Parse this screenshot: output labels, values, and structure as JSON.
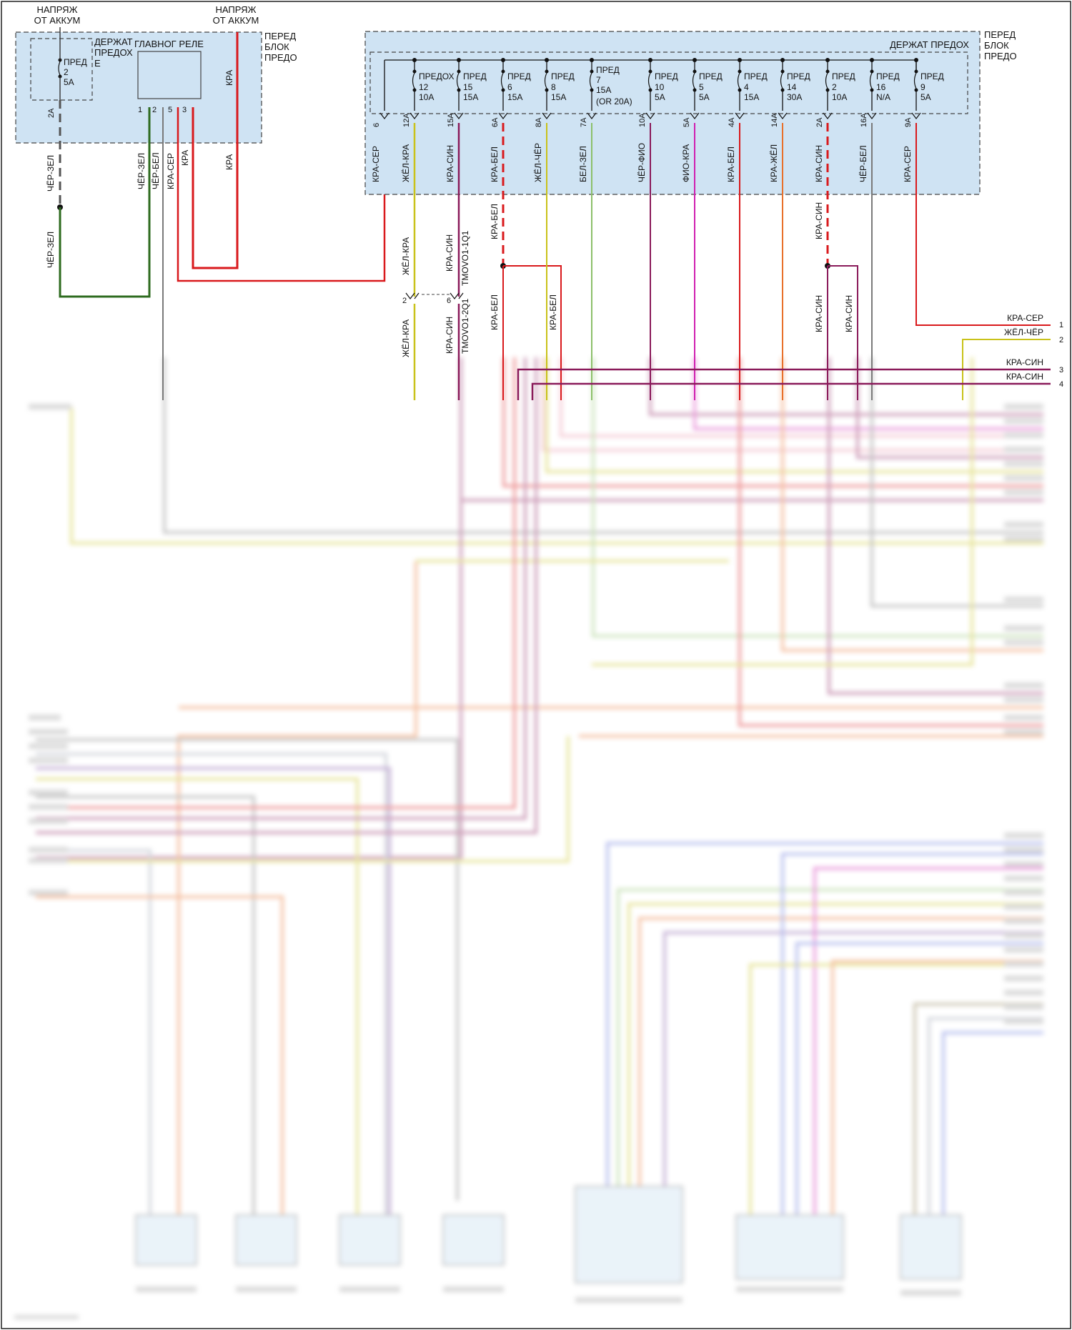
{
  "top_left": {
    "supply_left": [
      "НАПРЯЖ",
      "ОТ АККУМ"
    ],
    "supply_right": [
      "НАПРЯЖ",
      "ОТ АККУМ"
    ],
    "holder_label": [
      "ДЕРЖАТ",
      "ПРЕДОХ",
      "Е"
    ],
    "fuse": [
      "ПРЕД",
      "2",
      "5A"
    ],
    "relay_label": "ГЛАВНОГ РЕЛЕ",
    "relay_pins": [
      "1",
      "2",
      "5",
      "3"
    ],
    "block_label": [
      "ПЕРЕД",
      "БЛОК",
      "ПРЕДО"
    ],
    "pin_2a": "2A",
    "wires": {
      "relay_in": "КРА",
      "chr_zel_1": "ЧЁР-ЗЕЛ",
      "chr_zel_2": "ЧЁР-ЗЕЛ",
      "p1": "ЧЁР-ЗЕЛ",
      "p2": "ЧЁР-БЕЛ",
      "p5": "КРА-СЕР",
      "p3": "КРА",
      "kra": "КРА"
    }
  },
  "top_right": {
    "block_label": [
      "ПЕРЕД",
      "БЛОК",
      "ПРЕДО"
    ],
    "holder_label": "ДЕРЖАТ ПРЕДОХ",
    "fuses": [
      {
        "name": "ПРЕДОХ",
        "num": "12",
        "rating": "10A"
      },
      {
        "name": "ПРЕД",
        "num": "15",
        "rating": "15A"
      },
      {
        "name": "ПРЕД",
        "num": "6",
        "rating": "15A"
      },
      {
        "name": "ПРЕД",
        "num": "8",
        "rating": "15A"
      },
      {
        "name": "ПРЕД",
        "num": "7",
        "rating": "15A",
        "extra": "(OR 20A)"
      },
      {
        "name": "ПРЕД",
        "num": "10",
        "rating": "5A"
      },
      {
        "name": "ПРЕД",
        "num": "5",
        "rating": "5A"
      },
      {
        "name": "ПРЕД",
        "num": "4",
        "rating": "15A"
      },
      {
        "name": "ПРЕД",
        "num": "14",
        "rating": "30A"
      },
      {
        "name": "ПРЕД",
        "num": "2",
        "rating": "10A"
      },
      {
        "name": "ПРЕД",
        "num": "16",
        "rating": "N/A"
      },
      {
        "name": "ПРЕД",
        "num": "9",
        "rating": "5A"
      }
    ],
    "pins": [
      "6",
      "12A",
      "15A",
      "6A",
      "8A",
      "7A",
      "10A",
      "5A",
      "4A",
      "14A",
      "2A",
      "16A",
      "9A"
    ],
    "wires": [
      "КРА-СЕР",
      "ЖЁЛ-КРА",
      "КРА-СИН",
      "КРА-БЕЛ",
      "ЖЁЛ-ЧЁР",
      "БЕЛ-ЗЕЛ",
      "ЧЁР-ФИО",
      "ФИО-КРА",
      "КРА-БЕЛ",
      "КРА-ЖЁЛ",
      "КРА-СИН",
      "ЧЁР-БЕЛ",
      "КРА-СЕР"
    ]
  },
  "mid": {
    "w_zhel_kra_a": "ЖЁЛ-КРА",
    "w_kra_sin_a": "КРА-СИН",
    "conn_a": "TMOVO1-1Q1",
    "pin_2": "2",
    "pin_6": "6",
    "w_zhel_kra_b": "ЖЁЛ-КРА",
    "w_kra_sin_b": "КРА-СИН",
    "conn_b": "TMOVO1-2Q1",
    "w_kra_bel_a": "КРА-БЕЛ",
    "w_kra_bel_b": "КРА-БЕЛ",
    "w_kra_bel_c": "КРА-БЕЛ",
    "w_kra_sin_c": "КРА-СИН",
    "w_kra_sin_d": "КРА-СИН",
    "w_kra_sin_e": "КРА-СИН"
  },
  "right_outputs": [
    {
      "label": "КРА-СЕР",
      "pin": "1"
    },
    {
      "label": "ЖЁЛ-ЧЁР",
      "pin": "2"
    },
    {
      "label": "КРА-СИН",
      "pin": "3"
    },
    {
      "label": "КРА-СИН",
      "pin": "4"
    }
  ],
  "colors": {
    "red": "#d9191c",
    "green": "#2e6b1f",
    "gray": "#7a7a7a",
    "yellow": "#c9c21a",
    "purple": "#8a1a5a",
    "magenta": "#d01fb0",
    "violet": "#7a4aa0",
    "orange": "#e8702a",
    "lightgreen": "#8cc06a",
    "blue": "#5a6bd8",
    "box": "#cfe3f3",
    "box_border": "#444444"
  }
}
